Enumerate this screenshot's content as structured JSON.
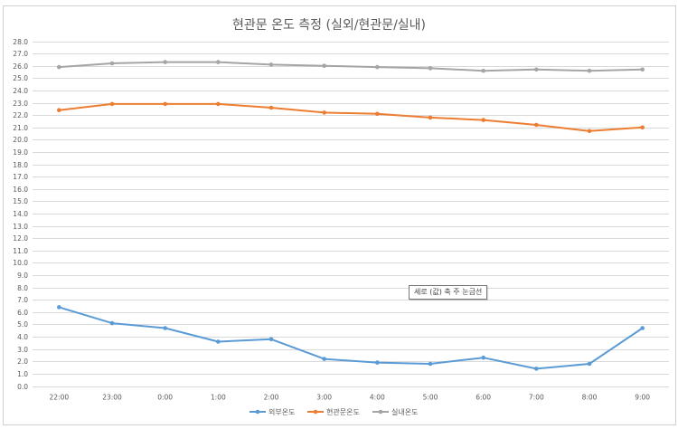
{
  "chart_data": {
    "type": "line",
    "title": "현관문 온도 측정 (실외/현관문/실내)",
    "categories": [
      "22:00",
      "23:00",
      "0:00",
      "1:00",
      "2:00",
      "3:00",
      "4:00",
      "5:00",
      "6:00",
      "7:00",
      "8:00",
      "9:00"
    ],
    "ylim": [
      0,
      28
    ],
    "ytick_step": 1,
    "ytick_labels": [
      "0.0",
      "1.0",
      "2.0",
      "3.0",
      "4.0",
      "5.0",
      "6.0",
      "7.0",
      "8.0",
      "9.0",
      "10.0",
      "11.0",
      "12.0",
      "13.0",
      "14.0",
      "15.0",
      "16.0",
      "17.0",
      "18.0",
      "19.0",
      "20.0",
      "21.0",
      "22.0",
      "23.0",
      "24.0",
      "25.0",
      "26.0",
      "27.0",
      "28.0"
    ],
    "grid": true,
    "legend_position": "bottom",
    "series": [
      {
        "name": "외부온도",
        "color": "#5B9BD5",
        "values": [
          6.4,
          5.1,
          4.7,
          3.6,
          3.8,
          2.2,
          1.9,
          1.8,
          2.3,
          1.4,
          1.8,
          4.7
        ]
      },
      {
        "name": "현관문온도",
        "color": "#ED7D31",
        "values": [
          22.4,
          22.9,
          22.9,
          22.9,
          22.6,
          22.2,
          22.1,
          21.8,
          21.6,
          21.2,
          20.7,
          21.0
        ]
      },
      {
        "name": "실내온도",
        "color": "#A5A5A5",
        "values": [
          25.9,
          26.2,
          26.3,
          26.3,
          26.1,
          26.0,
          25.9,
          25.8,
          25.6,
          25.7,
          25.6,
          25.7
        ]
      }
    ]
  },
  "tooltip": {
    "text": "세로 (값) 축 주 눈금선"
  },
  "colors": {
    "gridline": "#D9D9D9",
    "text": "#595959"
  }
}
